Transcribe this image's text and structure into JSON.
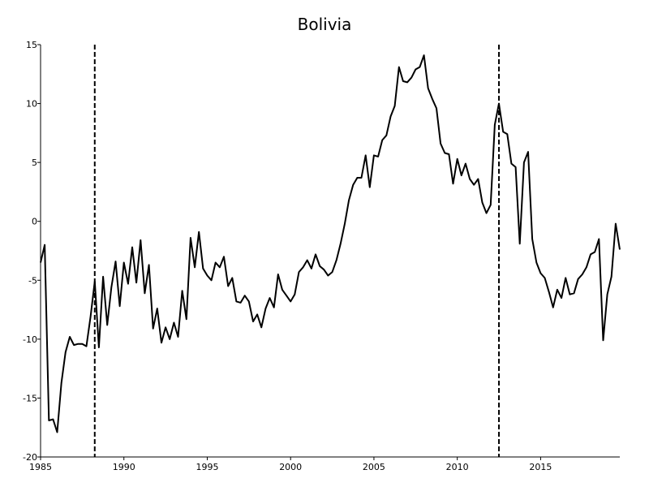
{
  "chart_data": {
    "type": "line",
    "title": "Bolivia",
    "xlabel": "",
    "ylabel": "",
    "xlim": [
      1985,
      2019.75
    ],
    "ylim": [
      -20,
      15
    ],
    "x_ticks": [
      1985,
      1990,
      1995,
      2000,
      2005,
      2010,
      2015
    ],
    "y_ticks": [
      -20,
      -15,
      -10,
      -5,
      0,
      5,
      10,
      15
    ],
    "grid": false,
    "legend": "none",
    "line_color": "#000000",
    "vertical_lines": [
      {
        "x": 1988.25,
        "style": "dashed"
      },
      {
        "x": 2012.5,
        "style": "dashed"
      }
    ],
    "series": [
      {
        "x": [
          1985.0,
          1985.25,
          1985.5,
          1985.75,
          1986.0,
          1986.25,
          1986.5,
          1986.75,
          1987.0,
          1987.25,
          1987.5,
          1987.75,
          1988.0,
          1988.25,
          1988.5,
          1988.75,
          1989.0,
          1989.25,
          1989.5,
          1989.75,
          1990.0,
          1990.25,
          1990.5,
          1990.75,
          1991.0,
          1991.25,
          1991.5,
          1991.75,
          1992.0,
          1992.25,
          1992.5,
          1992.75,
          1993.0,
          1993.25,
          1993.5,
          1993.75,
          1994.0,
          1994.25,
          1994.5,
          1994.75,
          1995.0,
          1995.25,
          1995.5,
          1995.75,
          1996.0,
          1996.25,
          1996.5,
          1996.75,
          1997.0,
          1997.25,
          1997.5,
          1997.75,
          1998.0,
          1998.25,
          1998.5,
          1998.75,
          1999.0,
          1999.25,
          1999.5,
          1999.75,
          2000.0,
          2000.25,
          2000.5,
          2000.75,
          2001.0,
          2001.25,
          2001.5,
          2001.75,
          2002.0,
          2002.25,
          2002.5,
          2002.75,
          2003.0,
          2003.25,
          2003.5,
          2003.75,
          2004.0,
          2004.25,
          2004.5,
          2004.75,
          2005.0,
          2005.25,
          2005.5,
          2005.75,
          2006.0,
          2006.25,
          2006.5,
          2006.75,
          2007.0,
          2007.25,
          2007.5,
          2007.75,
          2008.0,
          2008.25,
          2008.5,
          2008.75,
          2009.0,
          2009.25,
          2009.5,
          2009.75,
          2010.0,
          2010.25,
          2010.5,
          2010.75,
          2011.0,
          2011.25,
          2011.5,
          2011.75,
          2012.0,
          2012.25,
          2012.5,
          2012.75,
          2013.0,
          2013.25,
          2013.5,
          2013.75,
          2014.0,
          2014.25,
          2014.5,
          2014.75,
          2015.0,
          2015.25,
          2015.5,
          2015.75,
          2016.0,
          2016.25,
          2016.5,
          2016.75,
          2017.0,
          2017.25,
          2017.5,
          2017.75,
          2018.0,
          2018.25,
          2018.5,
          2018.75,
          2019.0,
          2019.25,
          2019.5,
          2019.75
        ],
        "values": [
          -3.5,
          -2.0,
          -16.9,
          -16.8,
          -17.9,
          -13.7,
          -11.1,
          -9.8,
          -10.5,
          -10.4,
          -10.4,
          -10.6,
          -8.1,
          -5.1,
          -10.7,
          -4.7,
          -8.8,
          -5.6,
          -3.4,
          -7.2,
          -3.5,
          -5.3,
          -2.2,
          -5.2,
          -1.6,
          -6.1,
          -3.7,
          -9.1,
          -7.4,
          -10.3,
          -9.0,
          -10.0,
          -8.6,
          -9.8,
          -5.9,
          -8.3,
          -1.4,
          -3.9,
          -0.9,
          -4.0,
          -4.6,
          -5.0,
          -3.5,
          -3.9,
          -3.0,
          -5.5,
          -4.8,
          -6.8,
          -6.9,
          -6.3,
          -6.8,
          -8.5,
          -7.9,
          -9.0,
          -7.4,
          -6.5,
          -7.3,
          -4.5,
          -5.8,
          -6.3,
          -6.8,
          -6.2,
          -4.3,
          -3.9,
          -3.3,
          -4.0,
          -2.8,
          -3.8,
          -4.1,
          -4.6,
          -4.3,
          -3.3,
          -1.9,
          -0.2,
          1.8,
          3.1,
          3.7,
          3.7,
          5.6,
          2.9,
          5.6,
          5.5,
          6.9,
          7.3,
          8.9,
          9.8,
          13.1,
          11.9,
          11.8,
          12.2,
          12.9,
          13.1,
          14.1,
          11.3,
          10.4,
          9.6,
          6.6,
          5.8,
          5.7,
          3.2,
          5.3,
          3.9,
          4.9,
          3.6,
          3.1,
          3.6,
          1.6,
          0.7,
          1.4,
          8.2,
          10.0,
          7.6,
          7.4,
          4.9,
          4.6,
          -1.9,
          5.0,
          5.9,
          -1.5,
          -3.5,
          -4.4,
          -4.8,
          -6.0,
          -7.3,
          -5.8,
          -6.5,
          -4.8,
          -6.2,
          -6.1,
          -4.9,
          -4.5,
          -3.9,
          -2.8,
          -2.6,
          -1.5,
          -10.1,
          -6.2,
          -4.7,
          -0.2,
          -2.4
        ]
      }
    ]
  }
}
